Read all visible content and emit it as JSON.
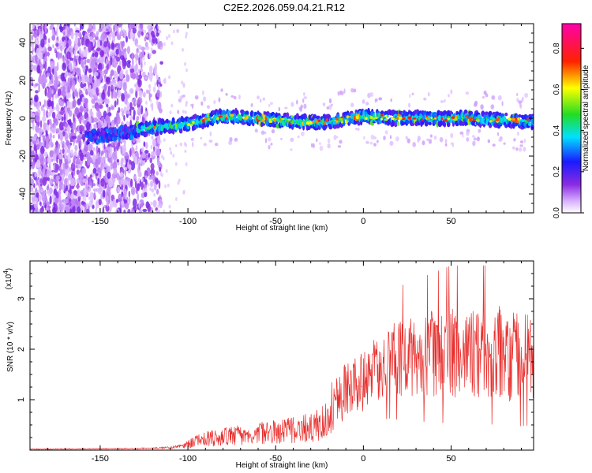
{
  "title": "C2E2.2026.059.04.21.R12",
  "colors": {
    "snr_line": "#e8302e",
    "axis": "#000000",
    "background": "#ffffff"
  },
  "chart_data": [
    {
      "type": "heatmap",
      "xlabel": "Height of straight line (km)",
      "ylabel": "Frequency (Hz)",
      "xlim": [
        -190,
        97
      ],
      "ylim": [
        -50,
        50
      ],
      "xticks": [
        -150,
        -100,
        -50,
        0,
        50
      ],
      "xtick_labels": [
        "-150",
        "-100",
        "-50",
        "0",
        "50"
      ],
      "yticks": [
        -40,
        -20,
        0,
        20,
        40
      ],
      "ytick_labels": [
        "-40",
        "-20",
        "0",
        "20",
        "40"
      ],
      "colorbar": {
        "label": "Normalized spectral amplitude",
        "range": [
          0.0,
          0.92
        ],
        "ticks": [
          0.0,
          0.2,
          0.4,
          0.6,
          0.8
        ],
        "tick_labels": [
          "0.0",
          "0.2",
          "0.4",
          "0.6",
          "0.8"
        ],
        "colormap": "white-violet-blue-cyan-green-yellow-red-magenta"
      },
      "features": {
        "noise_region_x": [
          -190,
          -125
        ],
        "trace_start_x": -158,
        "trace_center_freq_points": [
          [
            -158,
            -10
          ],
          [
            -140,
            -8
          ],
          [
            -120,
            -5
          ],
          [
            -100,
            -3
          ],
          [
            -80,
            1
          ],
          [
            -60,
            0
          ],
          [
            -40,
            -2
          ],
          [
            -20,
            -2
          ],
          [
            0,
            1
          ],
          [
            20,
            0
          ],
          [
            40,
            0
          ],
          [
            60,
            0
          ],
          [
            80,
            -1
          ],
          [
            97,
            -2
          ]
        ],
        "trace_halfwidth_hz": 4
      }
    },
    {
      "type": "line",
      "xlabel": "Height of straight line (km)",
      "ylabel": "SNR (10 * v/v)",
      "scale_label": "(x10",
      "scale_exponent": "4",
      "xlim": [
        -190,
        97
      ],
      "ylim": [
        0,
        3.75
      ],
      "xticks": [
        -150,
        -100,
        -50,
        0,
        50
      ],
      "xtick_labels": [
        "-150",
        "-100",
        "-50",
        "0",
        "50"
      ],
      "yticks": [
        1,
        2,
        3
      ],
      "ytick_labels": [
        "1",
        "2",
        "3"
      ],
      "envelope": {
        "x": [
          -190,
          -130,
          -110,
          -102,
          -100,
          -95,
          -90,
          -80,
          -70,
          -60,
          -50,
          -40,
          -30,
          -25,
          -22,
          -20,
          -18,
          -15,
          -12,
          -10,
          -5,
          0,
          5,
          10,
          15,
          20,
          30,
          40,
          50,
          60,
          70,
          80,
          90,
          97
        ],
        "mean": [
          0.02,
          0.03,
          0.05,
          0.08,
          0.12,
          0.18,
          0.22,
          0.26,
          0.3,
          0.33,
          0.36,
          0.4,
          0.45,
          0.5,
          0.55,
          0.6,
          0.85,
          1.0,
          1.1,
          1.2,
          1.3,
          1.35,
          1.5,
          1.65,
          1.75,
          1.8,
          1.85,
          1.9,
          1.95,
          1.95,
          1.95,
          1.9,
          1.9,
          1.85
        ],
        "spread": [
          0.01,
          0.01,
          0.02,
          0.05,
          0.1,
          0.12,
          0.15,
          0.18,
          0.2,
          0.22,
          0.24,
          0.26,
          0.3,
          0.35,
          0.38,
          0.4,
          0.5,
          0.55,
          0.55,
          0.55,
          0.55,
          0.6,
          0.65,
          0.7,
          0.75,
          0.8,
          0.85,
          0.9,
          0.95,
          0.95,
          0.95,
          0.95,
          0.95,
          0.9
        ],
        "max_peak": 3.7
      }
    }
  ]
}
